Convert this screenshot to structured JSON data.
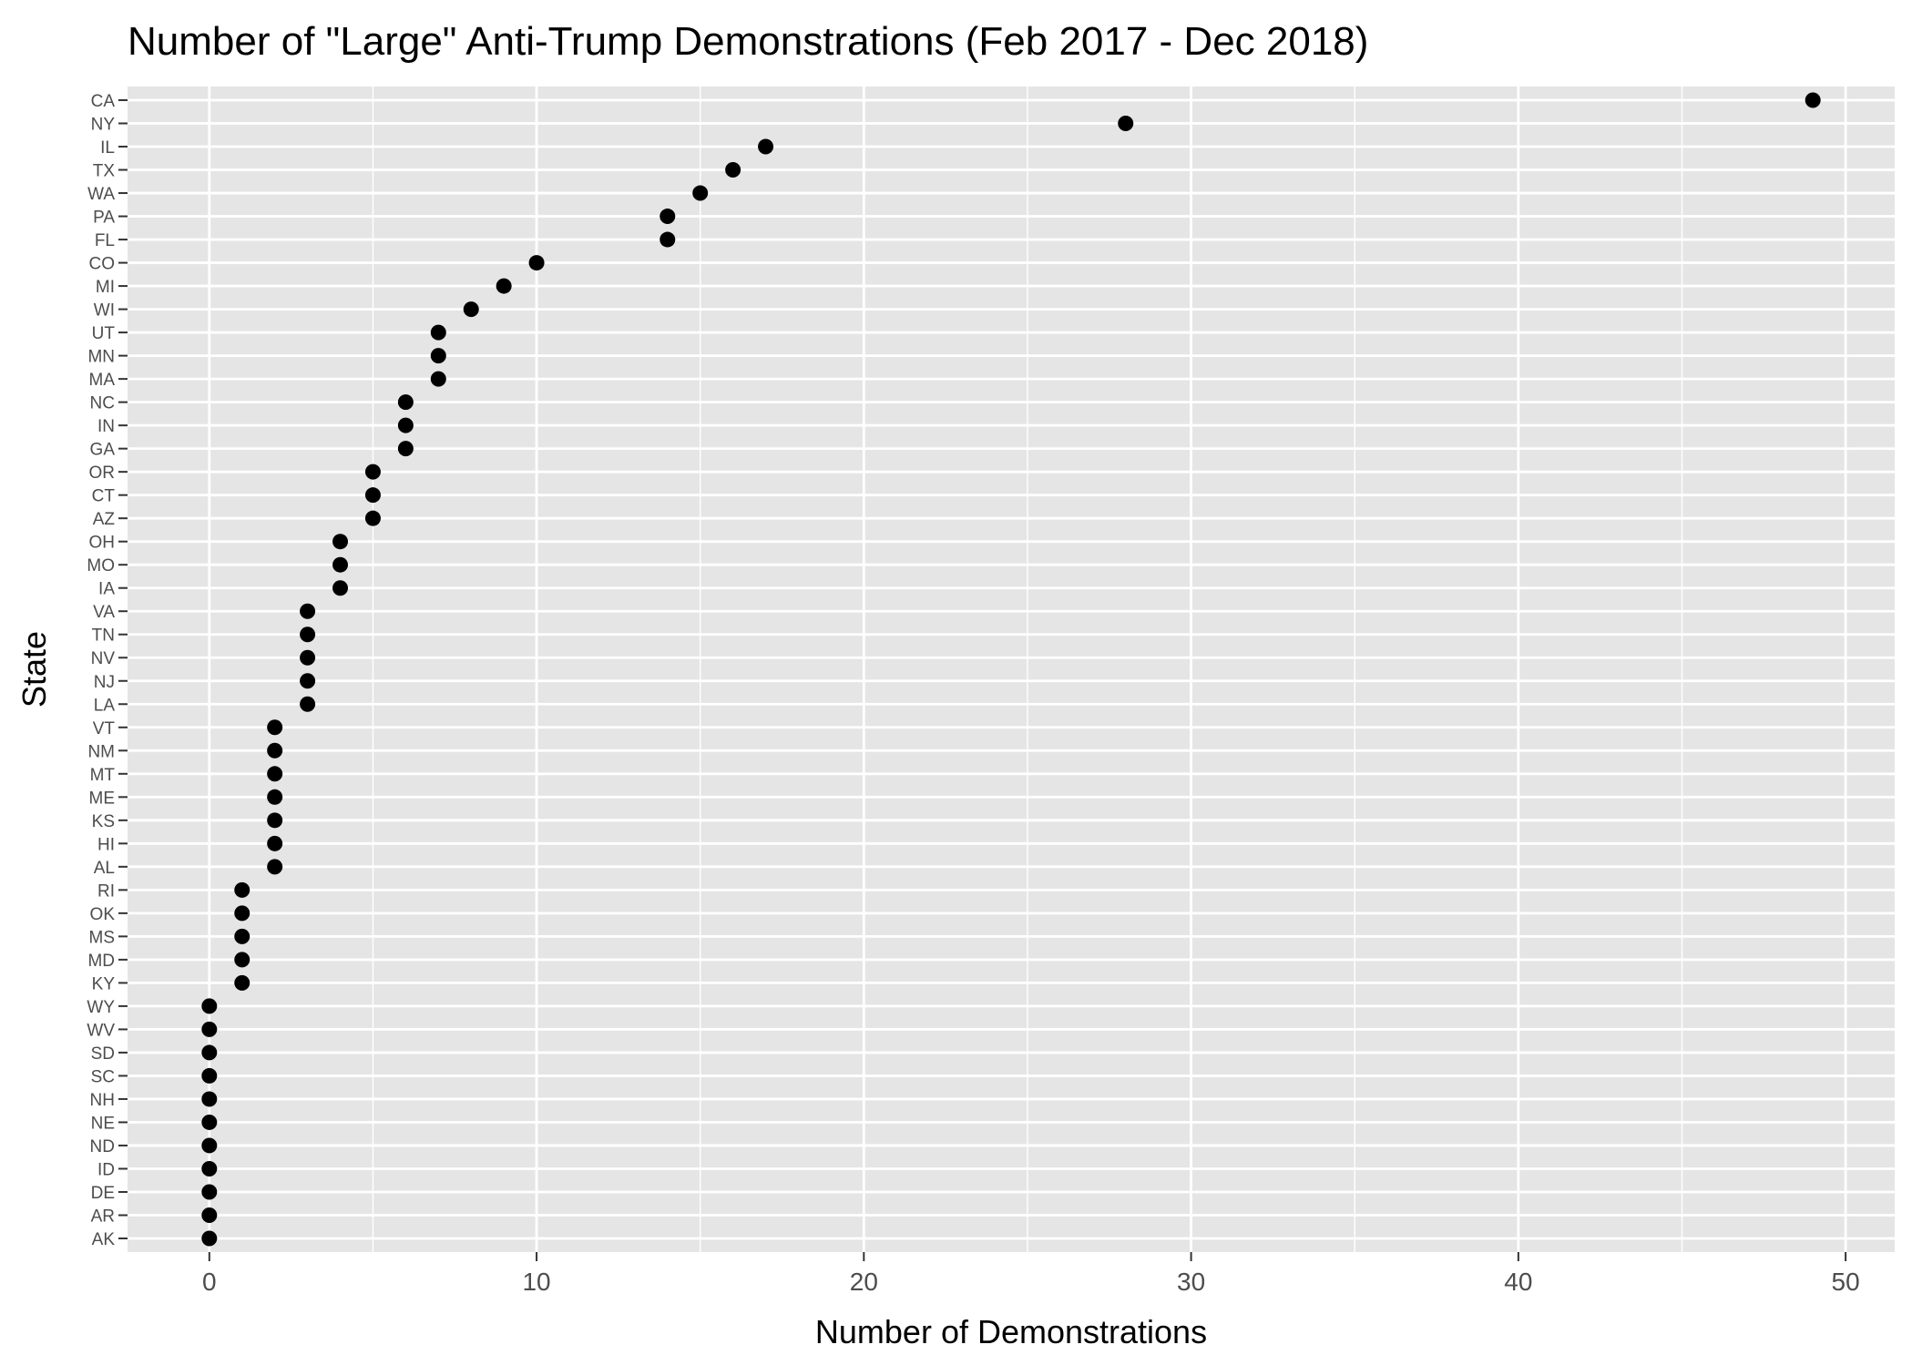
{
  "chart_data": {
    "type": "scatter",
    "title": "Number of \"Large\" Anti-Trump Demonstrations  (Feb 2017 - Dec 2018)",
    "xlabel": "Number of Demonstrations",
    "ylabel": "State",
    "xlim": [
      -2.5,
      51.5
    ],
    "x_ticks": [
      0,
      10,
      20,
      30,
      40,
      50
    ],
    "x_tick_labels": [
      "0",
      "10",
      "20",
      "30",
      "40",
      "50"
    ],
    "grid": true,
    "legend": "none",
    "categories": [
      "CA",
      "NY",
      "IL",
      "TX",
      "WA",
      "PA",
      "FL",
      "CO",
      "MI",
      "WI",
      "UT",
      "MN",
      "MA",
      "NC",
      "IN",
      "GA",
      "OR",
      "CT",
      "AZ",
      "OH",
      "MO",
      "IA",
      "VA",
      "TN",
      "NV",
      "NJ",
      "LA",
      "VT",
      "NM",
      "MT",
      "ME",
      "KS",
      "HI",
      "AL",
      "RI",
      "OK",
      "MS",
      "MD",
      "KY",
      "WY",
      "WV",
      "SD",
      "SC",
      "NH",
      "NE",
      "ND",
      "ID",
      "DE",
      "AR",
      "AK"
    ],
    "values": [
      49,
      28,
      17,
      16,
      15,
      14,
      14,
      10,
      9,
      8,
      7,
      7,
      7,
      6,
      6,
      6,
      5,
      5,
      5,
      4,
      4,
      4,
      3,
      3,
      3,
      3,
      3,
      2,
      2,
      2,
      2,
      2,
      2,
      2,
      1,
      1,
      1,
      1,
      1,
      0,
      0,
      0,
      0,
      0,
      0,
      0,
      0,
      0,
      0,
      0
    ],
    "colors": {
      "panel": "#e5e5e5",
      "grid": "#ffffff",
      "point": "#000000",
      "tick_text": "#4d4d4d",
      "tick_mark": "#333333"
    }
  }
}
